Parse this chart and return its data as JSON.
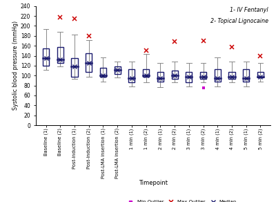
{
  "title_line1": "1- IV Fentanyl",
  "title_line2": "2- Topical Lignocaine",
  "ylabel": "Systolic blood pressure (mmHg)",
  "xlabel": "Timepoint",
  "ylim": [
    0,
    240
  ],
  "yticks": [
    0,
    20,
    40,
    60,
    80,
    100,
    120,
    140,
    160,
    180,
    200,
    220,
    240
  ],
  "categories": [
    "Baseline (1)",
    "Baseline (2)",
    "Post-induction (1)",
    "Post-induction (2)",
    "Post-LMA insertion (1)",
    "Post-LMA insertion (2)",
    "1 min (1)",
    "1 min (2)",
    "2 min (1)",
    "2 min (2)",
    "3 min (1)",
    "3 min (2)",
    "4 min (1)",
    "4 min (2)",
    "5 min (1)",
    "5 min (2)"
  ],
  "q1": [
    120,
    125,
    98,
    108,
    98,
    103,
    86,
    98,
    88,
    93,
    86,
    93,
    88,
    93,
    88,
    96
  ],
  "q3": [
    155,
    158,
    135,
    145,
    116,
    118,
    113,
    113,
    108,
    110,
    108,
    108,
    113,
    108,
    113,
    108
  ],
  "median": [
    135,
    132,
    118,
    126,
    101,
    111,
    95,
    100,
    95,
    100,
    98,
    98,
    95,
    98,
    95,
    98
  ],
  "whisker_low": [
    112,
    118,
    93,
    98,
    88,
    96,
    78,
    86,
    76,
    86,
    78,
    86,
    78,
    86,
    78,
    88
  ],
  "whisker_high": [
    193,
    188,
    183,
    172,
    136,
    128,
    128,
    143,
    126,
    128,
    126,
    126,
    136,
    128,
    128,
    126
  ],
  "max_outliers_per_cat": [
    null,
    218,
    215,
    180,
    null,
    null,
    null,
    150,
    null,
    168,
    null,
    170,
    null,
    158,
    null,
    140
  ],
  "min_outliers_per_cat": [
    null,
    null,
    null,
    null,
    null,
    null,
    null,
    null,
    null,
    null,
    null,
    75,
    null,
    null,
    null,
    null
  ],
  "box_color": "#1a1a6e",
  "whisker_color": "#888888",
  "max_outlier_color": "#cc0000",
  "min_outlier_color": "#cc00cc",
  "bg_color": "#ffffff"
}
